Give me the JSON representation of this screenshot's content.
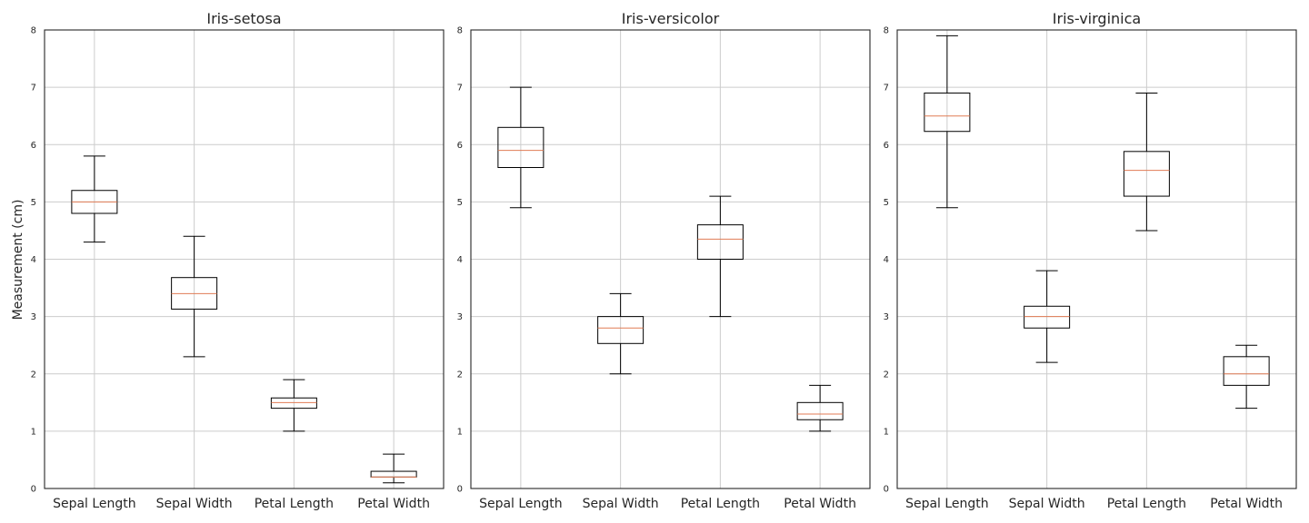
{
  "chart_data": [
    {
      "type": "boxplot",
      "title": "Iris-setosa",
      "ylabel": "Measurement (cm)",
      "ylim": [
        0,
        8
      ],
      "yticks": [
        "0",
        "1",
        "2",
        "3",
        "4",
        "5",
        "6",
        "7",
        "8"
      ],
      "categories": [
        "Sepal Length",
        "Sepal Width",
        "Petal Length",
        "Petal Width"
      ],
      "grid": true,
      "boxes": [
        {
          "whislo": 4.3,
          "q1": 4.8,
          "med": 5.0,
          "q3": 5.2,
          "whishi": 5.8
        },
        {
          "whislo": 2.3,
          "q1": 3.13,
          "med": 3.4,
          "q3": 3.68,
          "whishi": 4.4
        },
        {
          "whislo": 1.0,
          "q1": 1.4,
          "med": 1.5,
          "q3": 1.58,
          "whishi": 1.9
        },
        {
          "whislo": 0.1,
          "q1": 0.2,
          "med": 0.2,
          "q3": 0.3,
          "whishi": 0.6
        }
      ]
    },
    {
      "type": "boxplot",
      "title": "Iris-versicolor",
      "ylabel": "",
      "ylim": [
        0,
        8
      ],
      "yticks": [
        "0",
        "1",
        "2",
        "3",
        "4",
        "5",
        "6",
        "7",
        "8"
      ],
      "categories": [
        "Sepal Length",
        "Sepal Width",
        "Petal Length",
        "Petal Width"
      ],
      "grid": true,
      "boxes": [
        {
          "whislo": 4.9,
          "q1": 5.6,
          "med": 5.9,
          "q3": 6.3,
          "whishi": 7.0
        },
        {
          "whislo": 2.0,
          "q1": 2.53,
          "med": 2.8,
          "q3": 3.0,
          "whishi": 3.4
        },
        {
          "whislo": 3.0,
          "q1": 4.0,
          "med": 4.35,
          "q3": 4.6,
          "whishi": 5.1
        },
        {
          "whislo": 1.0,
          "q1": 1.2,
          "med": 1.3,
          "q3": 1.5,
          "whishi": 1.8
        }
      ]
    },
    {
      "type": "boxplot",
      "title": "Iris-virginica",
      "ylabel": "",
      "ylim": [
        0,
        8
      ],
      "yticks": [
        "0",
        "1",
        "2",
        "3",
        "4",
        "5",
        "6",
        "7",
        "8"
      ],
      "categories": [
        "Sepal Length",
        "Sepal Width",
        "Petal Length",
        "Petal Width"
      ],
      "grid": true,
      "boxes": [
        {
          "whislo": 4.9,
          "q1": 6.23,
          "med": 6.5,
          "q3": 6.9,
          "whishi": 7.9
        },
        {
          "whislo": 2.2,
          "q1": 2.8,
          "med": 3.0,
          "q3": 3.18,
          "whishi": 3.8
        },
        {
          "whislo": 4.5,
          "q1": 5.1,
          "med": 5.55,
          "q3": 5.88,
          "whishi": 6.9
        },
        {
          "whislo": 1.4,
          "q1": 1.8,
          "med": 2.0,
          "q3": 2.3,
          "whishi": 2.5
        }
      ]
    }
  ],
  "colors": {
    "median": "#e07b54",
    "box": "#000000",
    "grid": "#cccccc",
    "frame": "#262626"
  }
}
